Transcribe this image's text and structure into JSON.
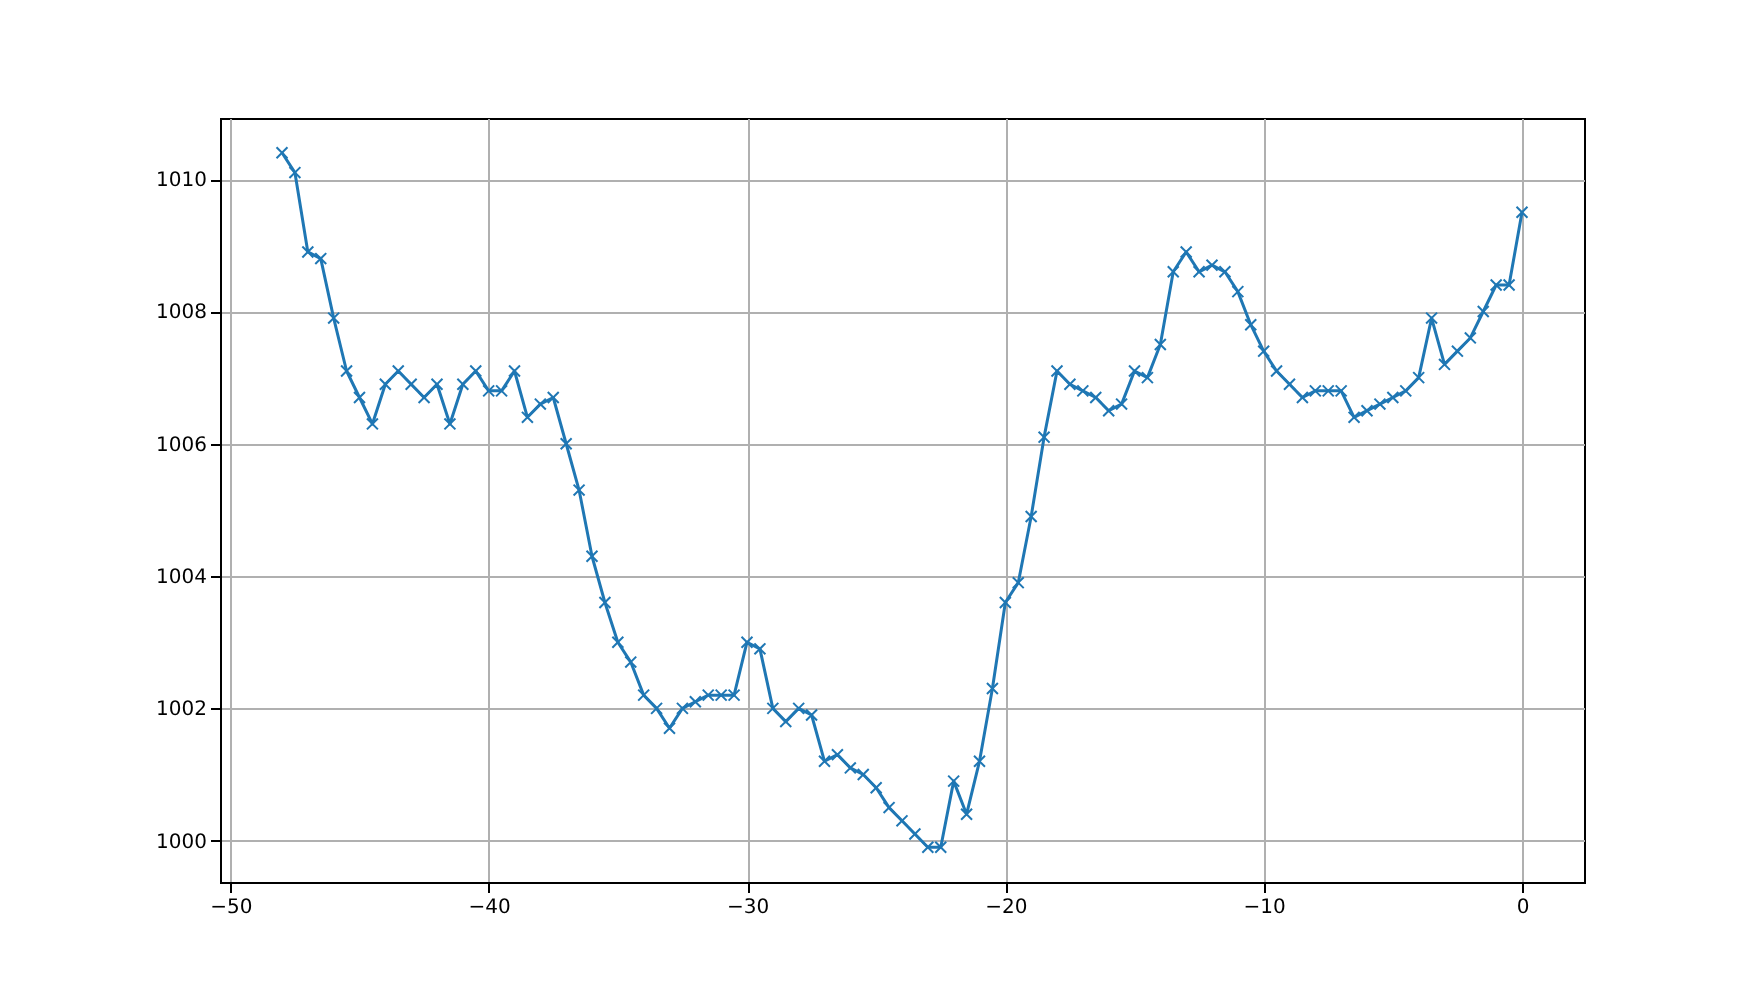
{
  "chart_data": {
    "type": "line",
    "marker": "cross",
    "grid": true,
    "line_style": "solid",
    "x": [
      -48,
      -47.5,
      -47,
      -46.5,
      -46,
      -45.5,
      -45,
      -44.5,
      -44,
      -43.5,
      -43,
      -42.5,
      -42,
      -41.5,
      -41,
      -40.5,
      -40,
      -39.5,
      -39,
      -38.5,
      -38,
      -37.5,
      -37,
      -36.5,
      -36,
      -35.5,
      -35,
      -34.5,
      -34,
      -33.5,
      -33,
      -32.5,
      -32,
      -31.5,
      -31,
      -30.5,
      -30,
      -29.5,
      -29,
      -28.5,
      -28,
      -27.5,
      -27,
      -26.5,
      -26,
      -25.5,
      -25,
      -24.5,
      -24,
      -23.5,
      -23,
      -22.5,
      -22,
      -21.5,
      -21,
      -20.5,
      -20,
      -19.5,
      -19,
      -18.5,
      -18,
      -17.5,
      -17,
      -16.5,
      -16,
      -15.5,
      -15,
      -14.5,
      -14,
      -13.5,
      -13,
      -12.5,
      -12,
      -11.5,
      -11,
      -10.5,
      -10,
      -9.5,
      -9,
      -8.5,
      -8,
      -7.5,
      -7,
      -6.5,
      -6,
      -5.5,
      -5,
      -4.5,
      -4,
      -3.5,
      -3,
      -2.5,
      -2,
      -1.5,
      -1,
      -0.5,
      0
    ],
    "series": [
      {
        "color": "#1f77b4",
        "values": [
          1010.4,
          1010.1,
          1008.9,
          1008.8,
          1007.9,
          1007.1,
          1006.7,
          1006.3,
          1006.9,
          1007.1,
          1006.9,
          1006.7,
          1006.9,
          1006.3,
          1006.9,
          1007.1,
          1006.8,
          1006.8,
          1007.1,
          1006.4,
          1006.6,
          1006.7,
          1006.0,
          1005.3,
          1004.3,
          1003.6,
          1003.0,
          1002.7,
          1002.2,
          1002.0,
          1001.7,
          1002.0,
          1002.1,
          1002.2,
          1002.2,
          1002.2,
          1003.0,
          1002.9,
          1002.0,
          1001.8,
          1002.0,
          1001.9,
          1001.2,
          1001.3,
          1001.1,
          1001.0,
          1000.8,
          1000.5,
          1000.3,
          1000.1,
          999.9,
          999.9,
          1000.9,
          1000.4,
          1001.2,
          1002.3,
          1003.6,
          1003.9,
          1004.9,
          1006.1,
          1007.1,
          1006.9,
          1006.8,
          1006.7,
          1006.5,
          1006.6,
          1007.1,
          1007.0,
          1007.5,
          1008.6,
          1008.9,
          1008.6,
          1008.7,
          1008.6,
          1008.3,
          1007.8,
          1007.4,
          1007.1,
          1006.9,
          1006.7,
          1006.8,
          1006.8,
          1006.8,
          1006.4,
          1006.5,
          1006.6,
          1006.7,
          1006.8,
          1007.0,
          1007.9,
          1007.2,
          1007.4,
          1007.6,
          1008.0,
          1008.4,
          1008.4,
          1009.5
        ]
      }
    ],
    "xlim": [
      -50.4,
      2.4
    ],
    "xticks": [
      -50,
      -40,
      -30,
      -20,
      -10,
      0
    ],
    "ylim": [
      999.375,
      1010.925
    ],
    "yticks": [
      1000,
      1002,
      1004,
      1006,
      1008,
      1010
    ]
  }
}
